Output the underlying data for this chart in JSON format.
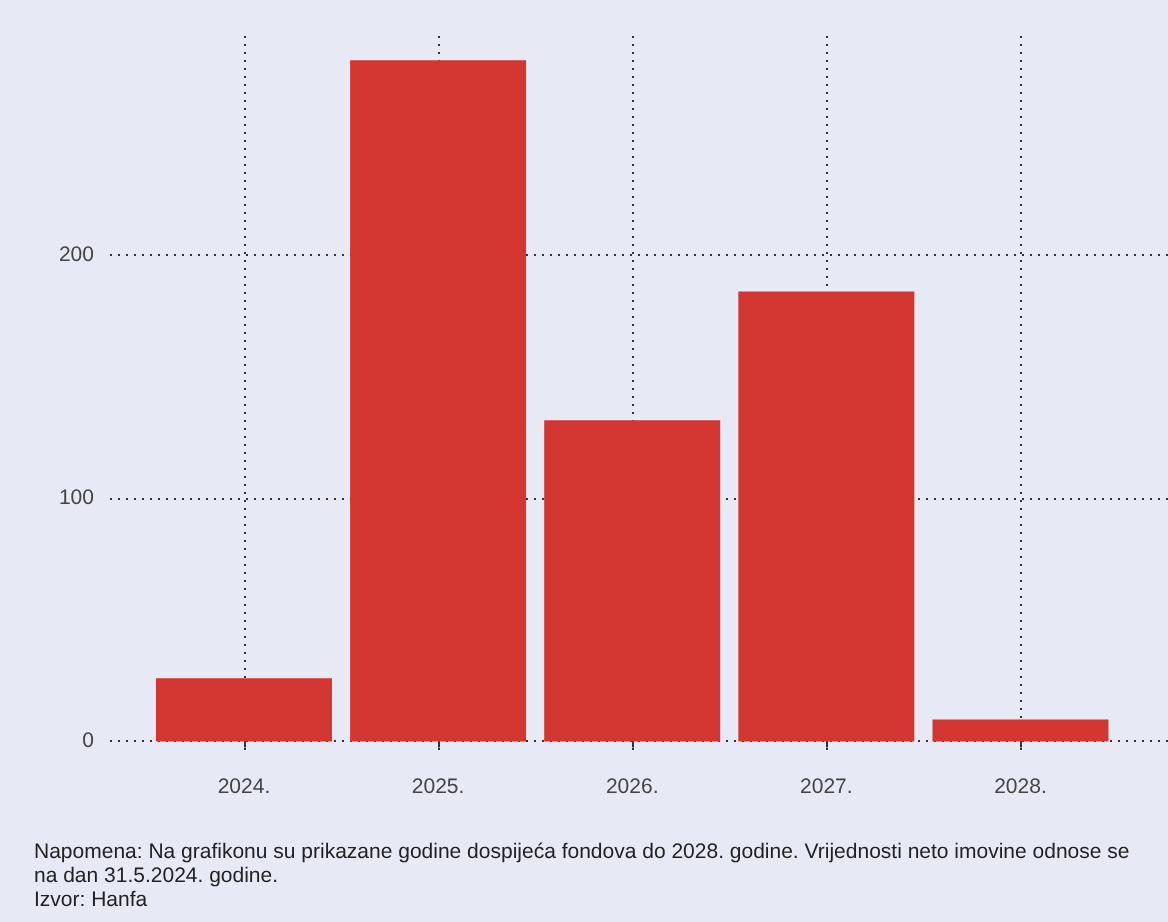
{
  "chart_data": {
    "type": "bar",
    "categories": [
      "2024.",
      "2025.",
      "2026.",
      "2027.",
      "2028."
    ],
    "values": [
      26,
      280,
      132,
      185,
      9
    ],
    "color": "#d33630",
    "ylim": [
      -6,
      290
    ],
    "yticks": [
      0,
      100,
      200
    ],
    "grid": true,
    "annotations": [
      "Napomena: Na grafikonu su prikazane godine dospijeća fondova do 2028. godine. Vrijednosti neto imovine odnose se na dan 31.5.2024. godine.",
      "Izvor: Hanfa"
    ]
  }
}
